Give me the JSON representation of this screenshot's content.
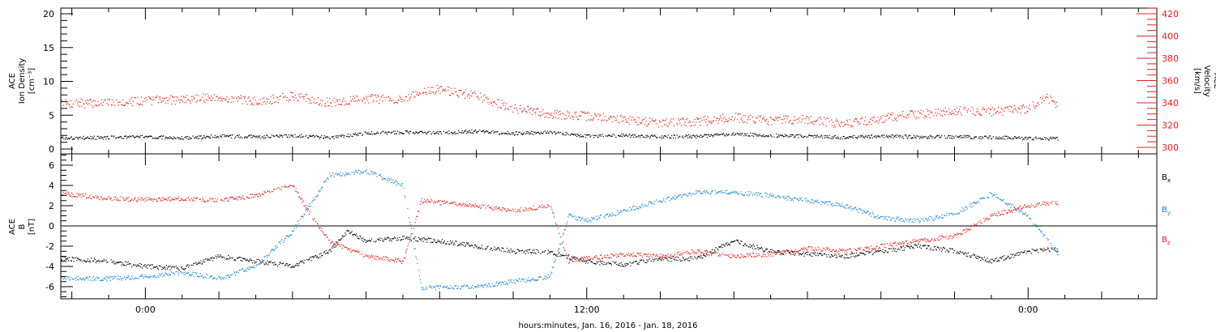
{
  "chart_data": [
    {
      "type": "scatter",
      "panel": "top",
      "ylabel_left": [
        "ACE",
        "Ion Density",
        "[cm⁻³]"
      ],
      "ylabel_right": [
        "ACE",
        "Velocity",
        "[km/s]"
      ],
      "left_ylim": [
        0,
        20
      ],
      "left_ticks": [
        "0",
        "5",
        "10",
        "15",
        "20"
      ],
      "right_ylim": [
        300,
        425
      ],
      "right_ticks": [
        "300",
        "320",
        "340",
        "360",
        "380",
        "400",
        "420"
      ],
      "colors": {
        "density": "#000000",
        "velocity": "#e8201e"
      },
      "series": [
        {
          "name": "Ion Density",
          "axis": "left",
          "points": [
            [
              -2.3,
              1.6
            ],
            [
              -1,
              1.7
            ],
            [
              0,
              1.8
            ],
            [
              1,
              1.6
            ],
            [
              2,
              1.9
            ],
            [
              3,
              1.8
            ],
            [
              4,
              2.0
            ],
            [
              5,
              1.7
            ],
            [
              6,
              2.3
            ],
            [
              7,
              2.5
            ],
            [
              8,
              2.4
            ],
            [
              9,
              2.6
            ],
            [
              10,
              2.3
            ],
            [
              11,
              2.5
            ],
            [
              12,
              1.9
            ],
            [
              13,
              2.0
            ],
            [
              14,
              1.8
            ],
            [
              15,
              1.9
            ],
            [
              16,
              2.2
            ],
            [
              17,
              2.0
            ],
            [
              18,
              1.9
            ],
            [
              19,
              1.7
            ],
            [
              20,
              1.9
            ],
            [
              21,
              1.8
            ],
            [
              22,
              1.8
            ],
            [
              23,
              1.7
            ],
            [
              24,
              1.6
            ],
            [
              24.8,
              1.5
            ]
          ]
        },
        {
          "name": "Velocity",
          "axis": "right",
          "points": [
            [
              -2.3,
              339
            ],
            [
              -1,
              340
            ],
            [
              0,
              342
            ],
            [
              1,
              343
            ],
            [
              2,
              345
            ],
            [
              3,
              341
            ],
            [
              4,
              346
            ],
            [
              5,
              340
            ],
            [
              6,
              344
            ],
            [
              7,
              343
            ],
            [
              7.5,
              351
            ],
            [
              8,
              352
            ],
            [
              9,
              346
            ],
            [
              10,
              335
            ],
            [
              11,
              330
            ],
            [
              12,
              328
            ],
            [
              13,
              325
            ],
            [
              14,
              322
            ],
            [
              15,
              323
            ],
            [
              16,
              327
            ],
            [
              17,
              324
            ],
            [
              18,
              325
            ],
            [
              19,
              321
            ],
            [
              20,
              326
            ],
            [
              21,
              330
            ],
            [
              22,
              333
            ],
            [
              23,
              332
            ],
            [
              24,
              335
            ],
            [
              24.5,
              345
            ],
            [
              24.8,
              338
            ]
          ]
        }
      ]
    },
    {
      "type": "scatter",
      "panel": "bottom",
      "ylabel": [
        "ACE",
        "B",
        "[nT]"
      ],
      "ylim": [
        -7,
        7.5
      ],
      "ticks": [
        "-6",
        "-4",
        "-2",
        "0",
        "2",
        "4",
        "6"
      ],
      "zero_line": true,
      "legend_position": "right",
      "series": [
        {
          "name": "B",
          "legend_sub": "x",
          "color": "#000000",
          "points": [
            [
              -2.3,
              -3.2
            ],
            [
              -1,
              -3.5
            ],
            [
              0,
              -4.0
            ],
            [
              1,
              -4.2
            ],
            [
              2,
              -3.0
            ],
            [
              3,
              -3.5
            ],
            [
              4,
              -4.0
            ],
            [
              5,
              -2.5
            ],
            [
              5.5,
              -0.5
            ],
            [
              6,
              -1.5
            ],
            [
              7,
              -1.2
            ],
            [
              8,
              -1.5
            ],
            [
              9,
              -2.0
            ],
            [
              10,
              -2.5
            ],
            [
              11,
              -2.6
            ],
            [
              12,
              -3.5
            ],
            [
              13,
              -3.8
            ],
            [
              14,
              -3.3
            ],
            [
              15,
              -3.2
            ],
            [
              16,
              -1.5
            ],
            [
              17,
              -2.5
            ],
            [
              18,
              -2.8
            ],
            [
              19,
              -3.0
            ],
            [
              20,
              -2.5
            ],
            [
              21,
              -2.0
            ],
            [
              22,
              -2.5
            ],
            [
              23,
              -3.5
            ],
            [
              24,
              -2.5
            ],
            [
              24.8,
              -2.3
            ]
          ]
        },
        {
          "name": "B",
          "legend_sub": "y",
          "color": "#1a85d6",
          "points": [
            [
              -2.3,
              -5.2
            ],
            [
              -1,
              -5.2
            ],
            [
              0,
              -5.0
            ],
            [
              1,
              -4.6
            ],
            [
              2,
              -5.2
            ],
            [
              3,
              -4.0
            ],
            [
              4,
              -0.5
            ],
            [
              5,
              5.0
            ],
            [
              6,
              5.4
            ],
            [
              7,
              4.0
            ],
            [
              7.5,
              -6.1
            ],
            [
              8,
              -6.1
            ],
            [
              9,
              -6.0
            ],
            [
              10,
              -5.5
            ],
            [
              11,
              -5.0
            ],
            [
              11.5,
              1.0
            ],
            [
              12,
              0.5
            ],
            [
              13,
              1.5
            ],
            [
              14,
              2.5
            ],
            [
              15,
              3.3
            ],
            [
              16,
              3.3
            ],
            [
              17,
              3.0
            ],
            [
              18,
              2.5
            ],
            [
              19,
              2.0
            ],
            [
              20,
              0.8
            ],
            [
              21,
              0.5
            ],
            [
              22,
              1.2
            ],
            [
              23,
              3.2
            ],
            [
              24,
              1.0
            ],
            [
              24.8,
              -2.8
            ]
          ]
        },
        {
          "name": "B",
          "legend_sub": "z",
          "color": "#e8201e",
          "points": [
            [
              -2.3,
              3.2
            ],
            [
              -1,
              2.7
            ],
            [
              0,
              2.6
            ],
            [
              1,
              2.7
            ],
            [
              2,
              2.5
            ],
            [
              3,
              3.0
            ],
            [
              4,
              4.0
            ],
            [
              4.5,
              1.0
            ],
            [
              5,
              -1.5
            ],
            [
              6,
              -3.0
            ],
            [
              7,
              -3.5
            ],
            [
              7.5,
              2.5
            ],
            [
              8,
              2.3
            ],
            [
              9,
              2.0
            ],
            [
              10,
              1.5
            ],
            [
              11,
              2.0
            ],
            [
              11.5,
              -3.5
            ],
            [
              12,
              -3.2
            ],
            [
              13,
              -2.8
            ],
            [
              14,
              -3.0
            ],
            [
              15,
              -2.5
            ],
            [
              16,
              -3.0
            ],
            [
              17,
              -2.8
            ],
            [
              18,
              -2.2
            ],
            [
              19,
              -2.5
            ],
            [
              20,
              -2.0
            ],
            [
              21,
              -1.5
            ],
            [
              22,
              -1.0
            ],
            [
              23,
              1.0
            ],
            [
              24,
              2.0
            ],
            [
              24.8,
              2.3
            ]
          ]
        }
      ]
    }
  ],
  "x_axis": {
    "tick_labels": [
      {
        "hour": 0,
        "label": "0:00"
      },
      {
        "hour": 12,
        "label": "12:00"
      },
      {
        "hour": 24,
        "label": "0:00"
      }
    ],
    "xlim_hours": [
      -2.3,
      27.5
    ],
    "xlabel": "hours:minutes, Jan. 16, 2016 - Jan. 18, 2016"
  }
}
